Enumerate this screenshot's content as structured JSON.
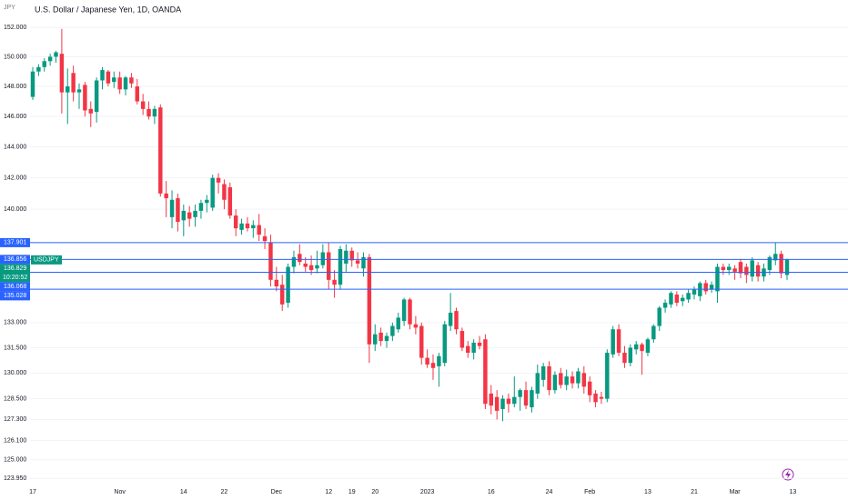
{
  "chart_data": {
    "type": "candlestick",
    "title": "U.S. Dollar / Japanese Yen, 1D, OANDA",
    "currency": "JPY",
    "log_scale": true,
    "grid": true,
    "up_color": "#089981",
    "down_color": "#f23645",
    "line_color": "#2962ff",
    "ylim": [
      123.2,
      153.9
    ],
    "yticks": [
      {
        "value": 152,
        "label": "152.000"
      },
      {
        "value": 150,
        "label": "150.000"
      },
      {
        "value": 148,
        "label": "148.000"
      },
      {
        "value": 146,
        "label": "146.000"
      },
      {
        "value": 144,
        "label": "144.000"
      },
      {
        "value": 142,
        "label": "142.000"
      },
      {
        "value": 140,
        "label": "140.000"
      },
      {
        "value": 133,
        "label": "133.000"
      },
      {
        "value": 131.5,
        "label": "131.500"
      },
      {
        "value": 130,
        "label": "130.000"
      },
      {
        "value": 128.5,
        "label": "128.500"
      },
      {
        "value": 127.3,
        "label": "127.300"
      },
      {
        "value": 126.1,
        "label": "126.100"
      },
      {
        "value": 125,
        "label": "125.000"
      },
      {
        "value": 123.95,
        "label": "123.950"
      }
    ],
    "x_labels": [
      {
        "index": 0,
        "label": "17"
      },
      {
        "index": 15,
        "label": "Nov"
      },
      {
        "index": 26,
        "label": "14"
      },
      {
        "index": 33,
        "label": "22"
      },
      {
        "index": 42,
        "label": "Dec"
      },
      {
        "index": 51,
        "label": "12"
      },
      {
        "index": 55,
        "label": "19"
      },
      {
        "index": 59,
        "label": "20"
      },
      {
        "index": 68,
        "label": "2023"
      },
      {
        "index": 79,
        "label": "16"
      },
      {
        "index": 89,
        "label": "24"
      },
      {
        "index": 96,
        "label": "Feb"
      },
      {
        "index": 106,
        "label": "13"
      },
      {
        "index": 114,
        "label": "21"
      },
      {
        "index": 121,
        "label": "Mar"
      },
      {
        "index": 131,
        "label": "13"
      }
    ],
    "price_lines": [
      137.901,
      136.856,
      136.068,
      135.028
    ],
    "last_price": {
      "symbol": "USDJPY",
      "value": 136.829,
      "countdown": "10:20:52"
    },
    "candles": [
      [
        147.3,
        149.3,
        147.1,
        149.0
      ],
      [
        149.0,
        149.5,
        148.7,
        149.3
      ],
      [
        149.3,
        149.9,
        149.0,
        149.7
      ],
      [
        149.7,
        150.2,
        149.4,
        150.0
      ],
      [
        150.0,
        150.4,
        149.6,
        150.3
      ],
      [
        150.2,
        151.9,
        146.2,
        147.6
      ],
      [
        147.6,
        149.2,
        145.5,
        148.0
      ],
      [
        148.9,
        149.4,
        147.0,
        147.6
      ],
      [
        147.6,
        148.2,
        146.5,
        147.8
      ],
      [
        148.1,
        148.3,
        146.0,
        146.4
      ],
      [
        146.5,
        147.0,
        145.3,
        146.2
      ],
      [
        146.3,
        148.6,
        145.6,
        148.4
      ],
      [
        148.4,
        149.3,
        147.8,
        149.1
      ],
      [
        149.0,
        149.1,
        148.0,
        148.2
      ],
      [
        148.3,
        149.0,
        147.9,
        148.6
      ],
      [
        148.6,
        149.0,
        147.5,
        147.8
      ],
      [
        147.8,
        148.7,
        147.4,
        148.6
      ],
      [
        148.6,
        148.9,
        147.9,
        148.2
      ],
      [
        148.0,
        148.5,
        146.8,
        147.0
      ],
      [
        147.0,
        147.5,
        146.1,
        146.5
      ],
      [
        146.5,
        147.0,
        145.8,
        146.0
      ],
      [
        146.0,
        146.7,
        145.5,
        146.5
      ],
      [
        146.6,
        146.8,
        140.8,
        141.0
      ],
      [
        141.0,
        141.8,
        139.5,
        140.7
      ],
      [
        139.5,
        141.2,
        138.8,
        140.6
      ],
      [
        140.7,
        141.0,
        138.6,
        139.2
      ],
      [
        139.3,
        140.3,
        138.3,
        139.9
      ],
      [
        139.8,
        140.2,
        138.9,
        139.4
      ],
      [
        139.5,
        140.3,
        138.9,
        139.9
      ],
      [
        139.9,
        140.6,
        139.4,
        140.4
      ],
      [
        140.4,
        140.9,
        139.8,
        140.6
      ],
      [
        140.1,
        142.2,
        139.9,
        142.0
      ],
      [
        142.0,
        142.3,
        141.0,
        141.7
      ],
      [
        141.6,
        141.9,
        140.0,
        140.6
      ],
      [
        141.4,
        141.7,
        139.4,
        139.6
      ],
      [
        139.6,
        140.0,
        138.3,
        138.8
      ],
      [
        138.7,
        139.4,
        138.4,
        139.1
      ],
      [
        139.1,
        139.5,
        138.6,
        138.8
      ],
      [
        138.8,
        139.3,
        138.2,
        139.0
      ],
      [
        139.0,
        139.7,
        138.0,
        138.4
      ],
      [
        138.3,
        138.8,
        137.5,
        138.0
      ],
      [
        137.9,
        138.4,
        135.2,
        135.6
      ],
      [
        135.6,
        136.4,
        134.9,
        135.2
      ],
      [
        135.3,
        135.9,
        133.7,
        134.1
      ],
      [
        134.2,
        136.6,
        133.9,
        136.4
      ],
      [
        136.4,
        137.4,
        136.0,
        137.0
      ],
      [
        137.2,
        137.8,
        136.5,
        136.7
      ],
      [
        136.6,
        137.0,
        136.1,
        136.4
      ],
      [
        136.5,
        137.1,
        135.9,
        136.2
      ],
      [
        136.3,
        137.4,
        136.0,
        136.5
      ],
      [
        136.5,
        137.8,
        136.3,
        137.3
      ],
      [
        137.3,
        137.9,
        135.0,
        135.6
      ],
      [
        135.6,
        136.2,
        134.5,
        135.3
      ],
      [
        135.3,
        137.7,
        135.0,
        137.5
      ],
      [
        136.6,
        137.8,
        136.1,
        137.4
      ],
      [
        137.4,
        137.6,
        136.4,
        136.8
      ],
      [
        136.8,
        137.3,
        136.3,
        136.6
      ],
      [
        136.3,
        137.3,
        135.8,
        137.0
      ],
      [
        137.0,
        137.2,
        130.6,
        131.7
      ],
      [
        131.7,
        132.9,
        131.3,
        132.3
      ],
      [
        132.4,
        132.7,
        131.6,
        131.9
      ],
      [
        131.9,
        132.4,
        131.5,
        132.2
      ],
      [
        132.2,
        133.0,
        131.9,
        132.8
      ],
      [
        132.6,
        133.6,
        132.4,
        133.3
      ],
      [
        133.1,
        134.5,
        132.8,
        134.4
      ],
      [
        134.4,
        134.5,
        132.6,
        132.9
      ],
      [
        132.9,
        133.4,
        132.3,
        132.7
      ],
      [
        132.8,
        133.0,
        130.5,
        130.9
      ],
      [
        130.9,
        131.4,
        130.3,
        130.5
      ],
      [
        130.6,
        131.1,
        129.6,
        130.3
      ],
      [
        130.4,
        131.2,
        129.2,
        131.0
      ],
      [
        130.6,
        133.1,
        130.4,
        132.9
      ],
      [
        132.8,
        134.8,
        132.5,
        133.6
      ],
      [
        133.7,
        133.9,
        132.3,
        132.6
      ],
      [
        132.5,
        132.7,
        131.3,
        131.5
      ],
      [
        131.6,
        131.9,
        130.9,
        131.2
      ],
      [
        131.2,
        132.0,
        130.8,
        131.8
      ],
      [
        131.8,
        132.2,
        131.4,
        131.6
      ],
      [
        132.0,
        132.3,
        127.9,
        128.2
      ],
      [
        128.8,
        129.3,
        127.6,
        128.1
      ],
      [
        128.6,
        129.0,
        127.3,
        127.8
      ],
      [
        127.9,
        128.7,
        127.2,
        128.5
      ],
      [
        128.5,
        128.8,
        127.7,
        128.2
      ],
      [
        128.2,
        129.8,
        128.0,
        128.6
      ],
      [
        128.6,
        129.1,
        127.8,
        129.0
      ],
      [
        129.0,
        129.5,
        127.9,
        128.1
      ],
      [
        128.0,
        129.2,
        127.7,
        129.0
      ],
      [
        128.8,
        130.5,
        128.5,
        130.0
      ],
      [
        129.6,
        130.6,
        129.2,
        130.4
      ],
      [
        130.4,
        130.7,
        128.7,
        129.0
      ],
      [
        129.0,
        130.1,
        128.8,
        129.9
      ],
      [
        130.0,
        130.3,
        129.1,
        129.3
      ],
      [
        129.3,
        130.2,
        129.0,
        129.8
      ],
      [
        129.8,
        130.1,
        129.1,
        129.4
      ],
      [
        129.4,
        130.3,
        129.1,
        130.1
      ],
      [
        130.0,
        130.4,
        128.8,
        129.2
      ],
      [
        129.5,
        129.8,
        128.3,
        128.7
      ],
      [
        128.8,
        129.0,
        128.0,
        128.3
      ],
      [
        128.6,
        128.9,
        128.2,
        128.5
      ],
      [
        128.5,
        131.4,
        128.3,
        131.2
      ],
      [
        131.1,
        132.8,
        130.9,
        132.6
      ],
      [
        132.6,
        132.9,
        131.0,
        131.2
      ],
      [
        131.2,
        131.6,
        130.3,
        130.6
      ],
      [
        130.6,
        131.7,
        130.4,
        131.5
      ],
      [
        131.4,
        131.9,
        131.1,
        131.7
      ],
      [
        131.7,
        131.8,
        129.9,
        131.3
      ],
      [
        131.2,
        132.1,
        131.0,
        132.0
      ],
      [
        132.0,
        132.9,
        131.8,
        132.8
      ],
      [
        132.8,
        134.0,
        132.5,
        133.9
      ],
      [
        133.9,
        134.4,
        133.6,
        134.2
      ],
      [
        134.1,
        134.9,
        133.9,
        134.8
      ],
      [
        134.7,
        134.9,
        134.0,
        134.2
      ],
      [
        134.3,
        134.7,
        134.0,
        134.5
      ],
      [
        134.4,
        135.0,
        134.2,
        134.8
      ],
      [
        134.7,
        135.2,
        134.4,
        135.0
      ],
      [
        134.6,
        135.5,
        134.3,
        135.4
      ],
      [
        135.4,
        135.6,
        134.7,
        134.9
      ],
      [
        135.0,
        135.5,
        134.8,
        135.3
      ],
      [
        134.9,
        136.6,
        134.2,
        136.4
      ],
      [
        136.4,
        136.6,
        135.9,
        136.2
      ],
      [
        136.2,
        136.6,
        135.9,
        136.4
      ],
      [
        136.3,
        136.5,
        135.6,
        136.1
      ],
      [
        136.7,
        136.9,
        135.7,
        136.0
      ],
      [
        136.4,
        136.6,
        135.4,
        135.9
      ],
      [
        135.8,
        137.0,
        135.5,
        136.8
      ],
      [
        136.5,
        136.7,
        135.5,
        135.8
      ],
      [
        135.8,
        136.6,
        135.5,
        136.3
      ],
      [
        136.2,
        137.1,
        135.9,
        137.0
      ],
      [
        136.8,
        137.9,
        136.5,
        137.2
      ],
      [
        137.2,
        137.4,
        135.7,
        136.0
      ],
      [
        135.9,
        136.9,
        135.6,
        136.829
      ]
    ]
  }
}
